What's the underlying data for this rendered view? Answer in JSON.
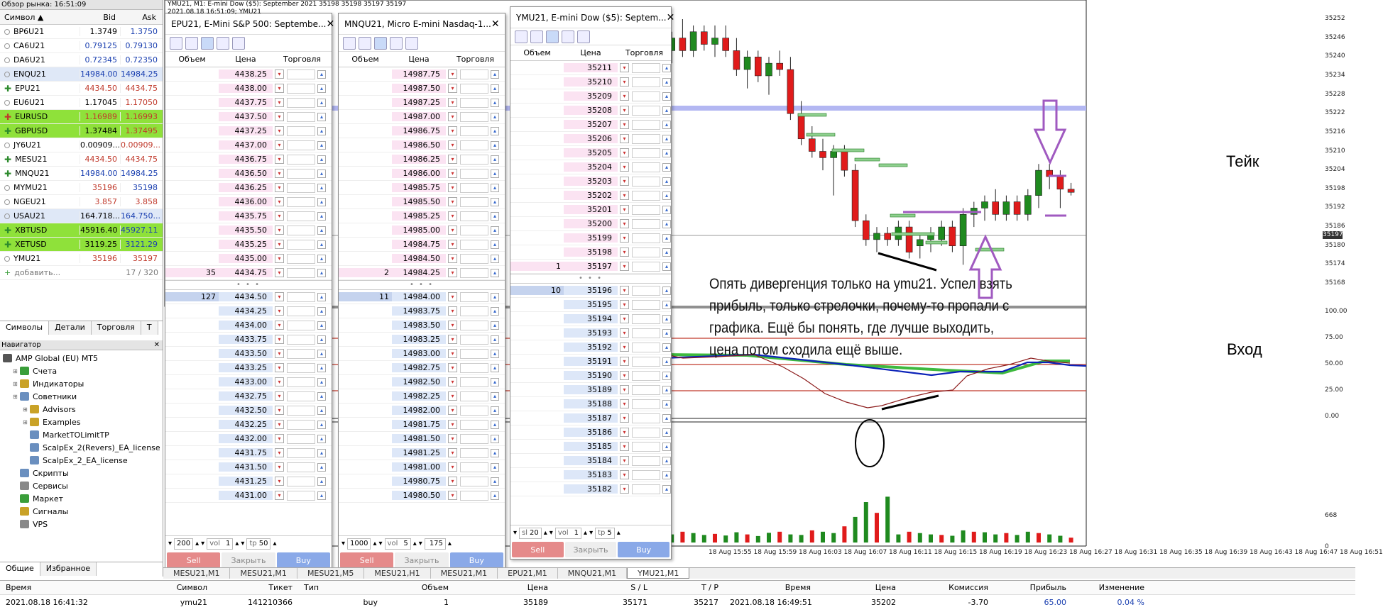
{
  "market_watch": {
    "title": "Обзор рынка: 16:51:09",
    "col_symbol": "Символ",
    "col_bid": "Bid",
    "col_ask": "Ask",
    "rows": [
      {
        "s": "BP6U21",
        "b": "1.3749",
        "a": "1.3750",
        "hl": "",
        "cb": "#000",
        "ca": "#1a3fb0",
        "ic": "dot"
      },
      {
        "s": "CA6U21",
        "b": "0.79125",
        "a": "0.79130",
        "hl": "",
        "cb": "#1a3fb0",
        "ca": "#1a3fb0",
        "ic": "dot"
      },
      {
        "s": "DA6U21",
        "b": "0.72345",
        "a": "0.72350",
        "hl": "",
        "cb": "#1a3fb0",
        "ca": "#1a3fb0",
        "ic": "dot"
      },
      {
        "s": "ENQU21",
        "b": "14984.00",
        "a": "14984.25",
        "hl": "#dfe8f7",
        "cb": "#1a3fb0",
        "ca": "#1a3fb0",
        "ic": "dot"
      },
      {
        "s": "EPU21",
        "b": "4434.50",
        "a": "4434.75",
        "hl": "",
        "cb": "#c0392b",
        "ca": "#c0392b",
        "ic": "plus"
      },
      {
        "s": "EU6U21",
        "b": "1.17045",
        "a": "1.17050",
        "hl": "",
        "cb": "#000",
        "ca": "#c0392b",
        "ic": "dot"
      },
      {
        "s": "EURUSD",
        "b": "1.16989",
        "a": "1.16993",
        "hl": "#8fe13a",
        "cb": "#c0392b",
        "ca": "#c0392b",
        "ic": "plusr"
      },
      {
        "s": "GBPUSD",
        "b": "1.37484",
        "a": "1.37495",
        "hl": "#8fe13a",
        "cb": "#000",
        "ca": "#c0392b",
        "ic": "plus"
      },
      {
        "s": "JY6U21",
        "b": "0.00909...",
        "a": "0.00909...",
        "hl": "",
        "cb": "#000",
        "ca": "#c0392b",
        "ic": "dot"
      },
      {
        "s": "MESU21",
        "b": "4434.50",
        "a": "4434.75",
        "hl": "",
        "cb": "#c0392b",
        "ca": "#c0392b",
        "ic": "plus"
      },
      {
        "s": "MNQU21",
        "b": "14984.00",
        "a": "14984.25",
        "hl": "",
        "cb": "#1a3fb0",
        "ca": "#1a3fb0",
        "ic": "plus"
      },
      {
        "s": "MYMU21",
        "b": "35196",
        "a": "35198",
        "hl": "",
        "cb": "#c0392b",
        "ca": "#1a3fb0",
        "ic": "dot"
      },
      {
        "s": "NGEU21",
        "b": "3.857",
        "a": "3.858",
        "hl": "",
        "cb": "#c0392b",
        "ca": "#c0392b",
        "ic": "dot"
      },
      {
        "s": "USAU21",
        "b": "164.718...",
        "a": "164.750...",
        "hl": "#dfe8f7",
        "cb": "#000",
        "ca": "#1a3fb0",
        "ic": "dot"
      },
      {
        "s": "XBTUSD",
        "b": "45916.40",
        "a": "45927.11",
        "hl": "#8fe13a",
        "cb": "#000",
        "ca": "#1a3fb0",
        "ic": "plus"
      },
      {
        "s": "XETUSD",
        "b": "3119.25",
        "a": "3121.29",
        "hl": "#8fe13a",
        "cb": "#000",
        "ca": "#1a3fb0",
        "ic": "plus"
      },
      {
        "s": "YMU21",
        "b": "35196",
        "a": "35197",
        "hl": "",
        "cb": "#c0392b",
        "ca": "#c0392b",
        "ic": "dot"
      }
    ],
    "add_label": "добавить...",
    "count": "17 / 320",
    "tabs": [
      "Символы",
      "Детали",
      "Торговля",
      "Т"
    ]
  },
  "navigator": {
    "title": "Навигатор",
    "items": [
      {
        "t": "AMP Global (EU) MT5",
        "lvl": 0,
        "c": "#555"
      },
      {
        "t": "Счета",
        "lvl": 1,
        "c": "#3a9e3a"
      },
      {
        "t": "Индикаторы",
        "lvl": 1,
        "c": "#c9a227"
      },
      {
        "t": "Советники",
        "lvl": 1,
        "c": "#6a8fbf"
      },
      {
        "t": "Advisors",
        "lvl": 2,
        "c": "#c9a227"
      },
      {
        "t": "Examples",
        "lvl": 2,
        "c": "#c9a227"
      },
      {
        "t": "MarketTOLimitTP",
        "lvl": 2,
        "c": "#6a8fbf"
      },
      {
        "t": "ScalpEx_2(Revers)_EA_license",
        "lvl": 2,
        "c": "#6a8fbf"
      },
      {
        "t": "ScalpEx_2_EA_license",
        "lvl": 2,
        "c": "#6a8fbf"
      },
      {
        "t": "Скрипты",
        "lvl": 1,
        "c": "#6a8fbf"
      },
      {
        "t": "Сервисы",
        "lvl": 1,
        "c": "#888"
      },
      {
        "t": "Маркет",
        "lvl": 1,
        "c": "#3a9e3a"
      },
      {
        "t": "Сигналы",
        "lvl": 1,
        "c": "#c9a227"
      },
      {
        "t": "VPS",
        "lvl": 1,
        "c": "#888"
      }
    ],
    "tabs": [
      "Общие",
      "Избранное"
    ]
  },
  "chart": {
    "header_line1": "YMU21, M1:  E-mini Dow ($5): September 2021   35198 35198 35197 35197",
    "header_line2": "2021.08.18 16:51:09; YMU21",
    "price_axis": [
      "35252",
      "35246",
      "35240",
      "35234",
      "35228",
      "35222",
      "35216",
      "35210",
      "35204",
      "35198",
      "35192",
      "35186",
      "35180",
      "35174",
      "35168"
    ],
    "current_price": "35197",
    "osc_axis": [
      "100.00",
      "75.00",
      "50.00",
      "25.00",
      "0.00"
    ],
    "vol_axis": [
      "668",
      "0"
    ],
    "time_axis": [
      "18 Aug 15:55",
      "18 Aug 15:59",
      "18 Aug 16:03",
      "18 Aug 16:07",
      "18 Aug 16:11",
      "18 Aug 16:15",
      "18 Aug 16:19",
      "18 Aug 16:23",
      "18 Aug 16:27",
      "18 Aug 16:31",
      "18 Aug 16:35",
      "18 Aug 16:39",
      "18 Aug 16:43",
      "18 Aug 16:47",
      "18 Aug 16:51"
    ],
    "annotation": "Опять дивергенция только на ymu21. Успел взять прибыль, только стрелочки, почему-то пропали с графика. Ещё бы понять, где лучше выходить, цена потом сходила ещё выше.",
    "take_label": "Тейк",
    "entry_label": "Вход"
  },
  "doms": [
    {
      "title": "EPU21, E-Mini S&P 500: Septembe...",
      "asks": [
        [
          "",
          "4438.25"
        ],
        [
          "",
          "4438.00"
        ],
        [
          "",
          "4437.75"
        ],
        [
          "",
          "4437.50"
        ],
        [
          "",
          "4437.25"
        ],
        [
          "",
          "4437.00"
        ],
        [
          "",
          "4436.75"
        ],
        [
          "",
          "4436.50"
        ],
        [
          "",
          "4436.25"
        ],
        [
          "",
          "4436.00"
        ],
        [
          "",
          "4435.75"
        ],
        [
          "",
          "4435.50"
        ],
        [
          "",
          "4435.25"
        ],
        [
          "",
          "4435.00"
        ],
        [
          "35",
          "4434.75"
        ]
      ],
      "bids": [
        [
          "127",
          "4434.50"
        ],
        [
          "",
          "4434.25"
        ],
        [
          "",
          "4434.00"
        ],
        [
          "",
          "4433.75"
        ],
        [
          "",
          "4433.50"
        ],
        [
          "",
          "4433.25"
        ],
        [
          "",
          "4433.00"
        ],
        [
          "",
          "4432.75"
        ],
        [
          "",
          "4432.50"
        ],
        [
          "",
          "4432.25"
        ],
        [
          "",
          "4432.00"
        ],
        [
          "",
          "4431.75"
        ],
        [
          "",
          "4431.50"
        ],
        [
          "",
          "4431.25"
        ],
        [
          "",
          "4431.00"
        ]
      ],
      "qty": "200",
      "vol": "vol",
      "vol_val": "1",
      "tp": "tp",
      "tp_val": "50"
    },
    {
      "title": "MNQU21, Micro E-mini Nasdaq-1...",
      "asks": [
        [
          "",
          "14987.75"
        ],
        [
          "",
          "14987.50"
        ],
        [
          "",
          "14987.25"
        ],
        [
          "",
          "14987.00"
        ],
        [
          "",
          "14986.75"
        ],
        [
          "",
          "14986.50"
        ],
        [
          "",
          "14986.25"
        ],
        [
          "",
          "14986.00"
        ],
        [
          "",
          "14985.75"
        ],
        [
          "",
          "14985.50"
        ],
        [
          "",
          "14985.25"
        ],
        [
          "",
          "14985.00"
        ],
        [
          "",
          "14984.75"
        ],
        [
          "",
          "14984.50"
        ],
        [
          "2",
          "14984.25"
        ]
      ],
      "bids": [
        [
          "11",
          "14984.00"
        ],
        [
          "",
          "14983.75"
        ],
        [
          "",
          "14983.50"
        ],
        [
          "",
          "14983.25"
        ],
        [
          "",
          "14983.00"
        ],
        [
          "",
          "14982.75"
        ],
        [
          "",
          "14982.50"
        ],
        [
          "",
          "14982.25"
        ],
        [
          "",
          "14982.00"
        ],
        [
          "",
          "14981.75"
        ],
        [
          "",
          "14981.50"
        ],
        [
          "",
          "14981.25"
        ],
        [
          "",
          "14981.00"
        ],
        [
          "",
          "14980.75"
        ],
        [
          "",
          "14980.50"
        ]
      ],
      "qty": "1000",
      "vol": "vol",
      "vol_val": "5",
      "tp": "",
      "tp_val": "175"
    },
    {
      "title": "YMU21, E-mini Dow ($5): Septem...",
      "asks": [
        [
          "",
          "35211"
        ],
        [
          "",
          "35210"
        ],
        [
          "",
          "35209"
        ],
        [
          "",
          "35208"
        ],
        [
          "",
          "35207"
        ],
        [
          "",
          "35206"
        ],
        [
          "",
          "35205"
        ],
        [
          "",
          "35204"
        ],
        [
          "",
          "35203"
        ],
        [
          "",
          "35202"
        ],
        [
          "",
          "35201"
        ],
        [
          "",
          "35200"
        ],
        [
          "",
          "35199"
        ],
        [
          "",
          "35198"
        ],
        [
          "1",
          "35197"
        ]
      ],
      "bids": [
        [
          "10",
          "35196"
        ],
        [
          "",
          "35195"
        ],
        [
          "",
          "35194"
        ],
        [
          "",
          "35193"
        ],
        [
          "",
          "35192"
        ],
        [
          "",
          "35191"
        ],
        [
          "",
          "35190"
        ],
        [
          "",
          "35189"
        ],
        [
          "",
          "35188"
        ],
        [
          "",
          "35187"
        ],
        [
          "",
          "35186"
        ],
        [
          "",
          "35185"
        ],
        [
          "",
          "35184"
        ],
        [
          "",
          "35183"
        ],
        [
          "",
          "35182"
        ]
      ],
      "qty": "20",
      "qty_prefix": "sl",
      "vol": "vol",
      "vol_val": "1",
      "tp": "tp",
      "tp_val": "5"
    }
  ],
  "dom_labels": {
    "vol": "Объем",
    "price": "Цена",
    "trade": "Торговля",
    "sell": "Sell",
    "close": "Закрыть",
    "buy": "Buy"
  },
  "chart_tabs": [
    "MESU21,M1",
    "MESU21,M1",
    "MESU21,M5",
    "MESU21,H1",
    "MESU21,M1",
    "EPU21,M1",
    "MNQU21,M1",
    "YMU21,M1"
  ],
  "trade": {
    "headers": [
      "Время",
      "Символ",
      "Тикет",
      "Тип",
      "Объем",
      "Цена",
      "S / L",
      "T / P",
      "Время",
      "Цена",
      "Комиссия",
      "Прибыль",
      "Изменение"
    ],
    "row": [
      "2021.08.18 16:41:32",
      "ymu21",
      "141210366",
      "buy",
      "1",
      "35189",
      "35171",
      "35217",
      "2021.08.18 16:49:51",
      "35202",
      "-3.70",
      "65.00",
      "0.04 %"
    ]
  }
}
